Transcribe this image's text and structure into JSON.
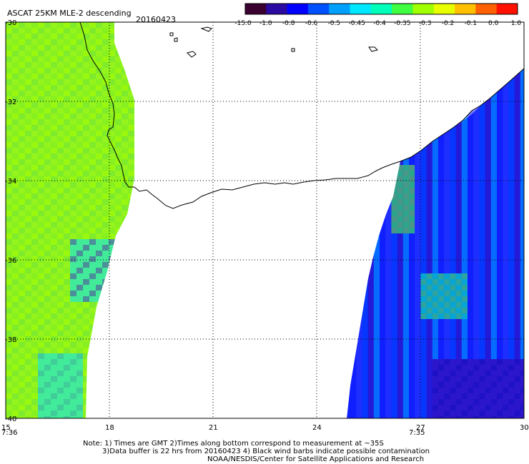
{
  "header": {
    "title": "ASCAT 25KM MLE-2 descending",
    "date": "20160423"
  },
  "colorbar": {
    "labels": [
      "-15.0",
      "-1.0",
      "-0.8",
      "-0.6",
      "-0.5",
      "-0.45",
      "-0.4",
      "-0.35",
      "-0.3",
      "-0.2",
      "-0.1",
      "0.0",
      "1.0"
    ],
    "colors": [
      "#3a0030",
      "#2a0aa0",
      "#0000ff",
      "#0050ff",
      "#00a0ff",
      "#00e8ff",
      "#00ffb8",
      "#40ff40",
      "#a0ff00",
      "#e8ff00",
      "#ffc000",
      "#ff6000",
      "#ff1000"
    ]
  },
  "axes": {
    "lat_labels": [
      "-30",
      "-32",
      "-34",
      "-36",
      "-38",
      "-40"
    ],
    "lon_labels": [
      "15",
      "18",
      "21",
      "24",
      "27",
      "30"
    ],
    "time_labels": [
      "7:36",
      "7:35"
    ],
    "time_color": "#e02000"
  },
  "map_data": {
    "lat_range": [
      -40,
      -30
    ],
    "lon_range": [
      15,
      30
    ],
    "grid": "dotted"
  },
  "notes": [
    "Note: 1) Times are GMT 2)Times along bottom correspond to measurement at ~35S",
    "3)Data buffer is 22 hrs from 20160423 4) Black wind barbs indicate possible contamination",
    "NOAA/NESDIS/Center for Satellite Applications and Research"
  ]
}
